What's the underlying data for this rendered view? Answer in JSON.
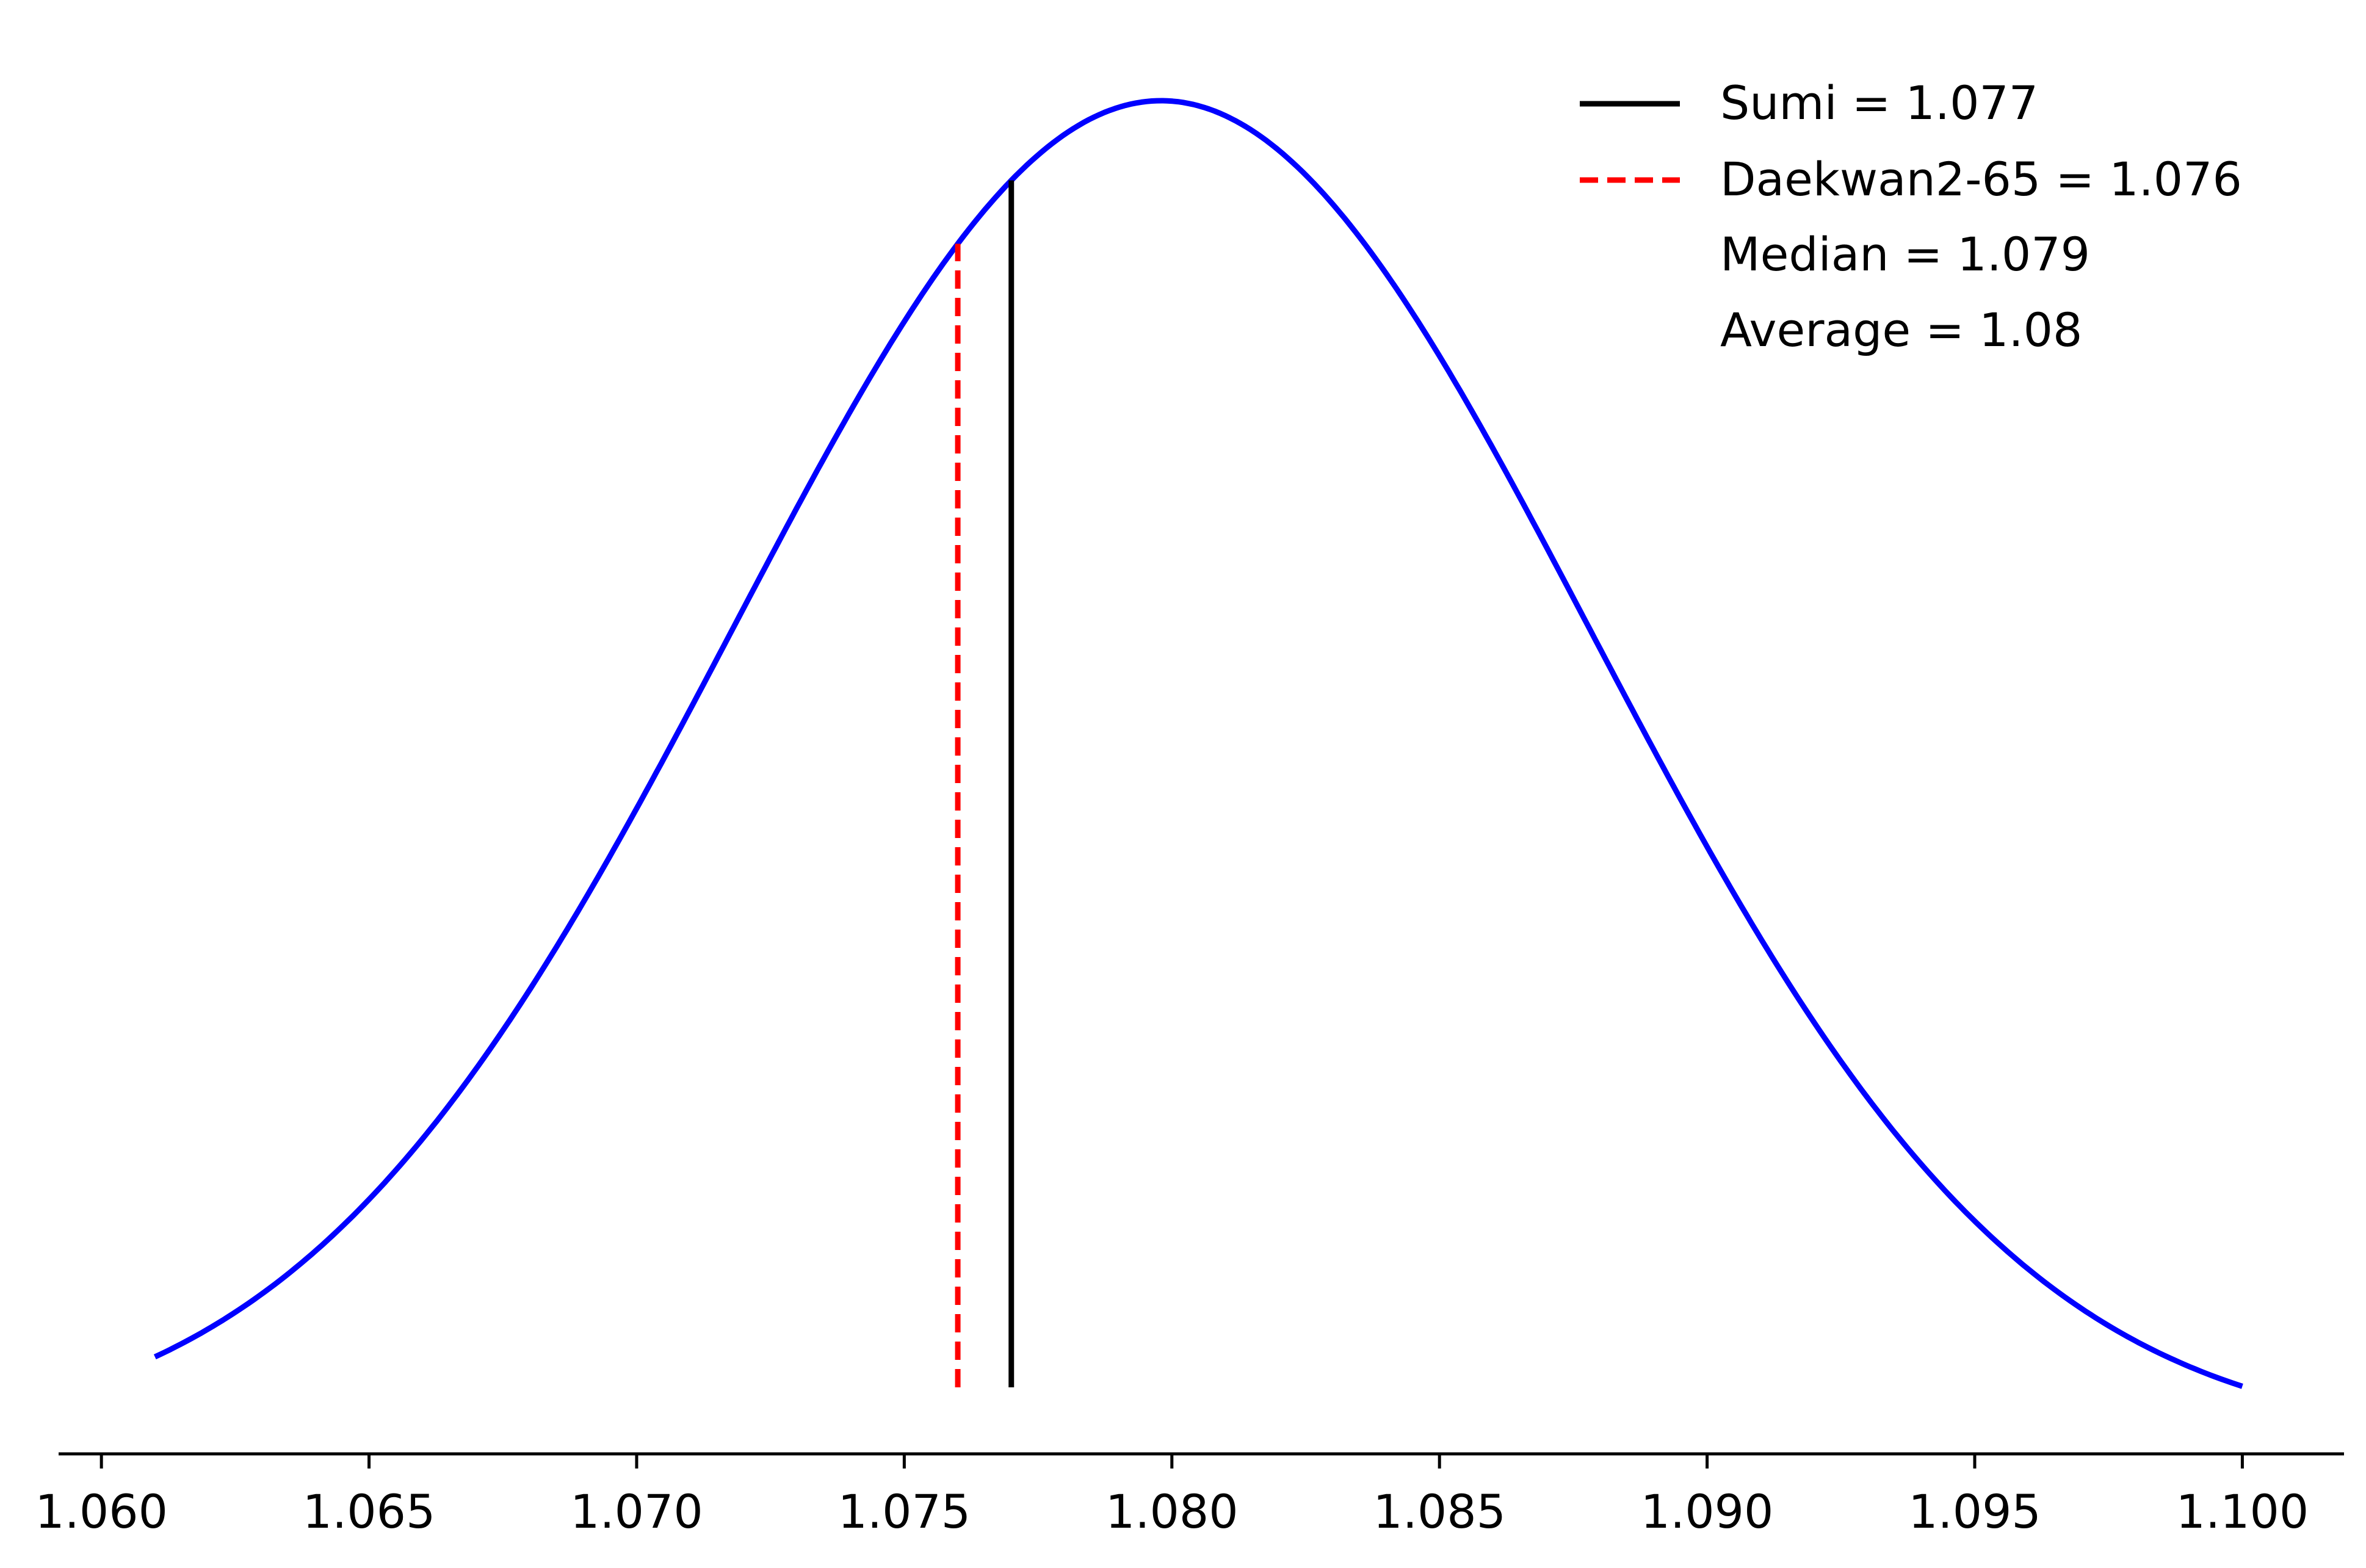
{
  "chart_data": {
    "type": "line",
    "title": "",
    "xlabel": "",
    "ylabel": "",
    "xlim": [
      1.0592,
      1.1019
    ],
    "x_ticks": [
      1.06,
      1.065,
      1.07,
      1.075,
      1.08,
      1.085,
      1.09,
      1.095,
      1.1
    ],
    "x_tick_labels": [
      "1.060",
      "1.065",
      "1.070",
      "1.075",
      "1.080",
      "1.085",
      "1.090",
      "1.095",
      "1.100"
    ],
    "y_axis_visible": false,
    "grid": false,
    "legend_position": "top-right",
    "distribution": {
      "kind": "normal",
      "mean": 1.0798,
      "sd": 0.008,
      "x_range": [
        1.061,
        1.1
      ],
      "color": "#0000ff"
    },
    "markers": [
      {
        "label": "Sumi = 1.077",
        "x": 1.077,
        "color": "#000000",
        "style": "solid"
      },
      {
        "label": "Daekwan2-65 = 1.076",
        "x": 1.076,
        "color": "#ff0000",
        "style": "dashed"
      }
    ],
    "legend_entries": [
      {
        "label": "Sumi = 1.077",
        "color": "#000000",
        "style": "solid"
      },
      {
        "label": "Daekwan2-65 = 1.076",
        "color": "#ff0000",
        "style": "dashed"
      },
      {
        "label": "Median = 1.079",
        "color": "none",
        "style": "none"
      },
      {
        "label": "Average = 1.08",
        "color": "none",
        "style": "none"
      }
    ]
  }
}
